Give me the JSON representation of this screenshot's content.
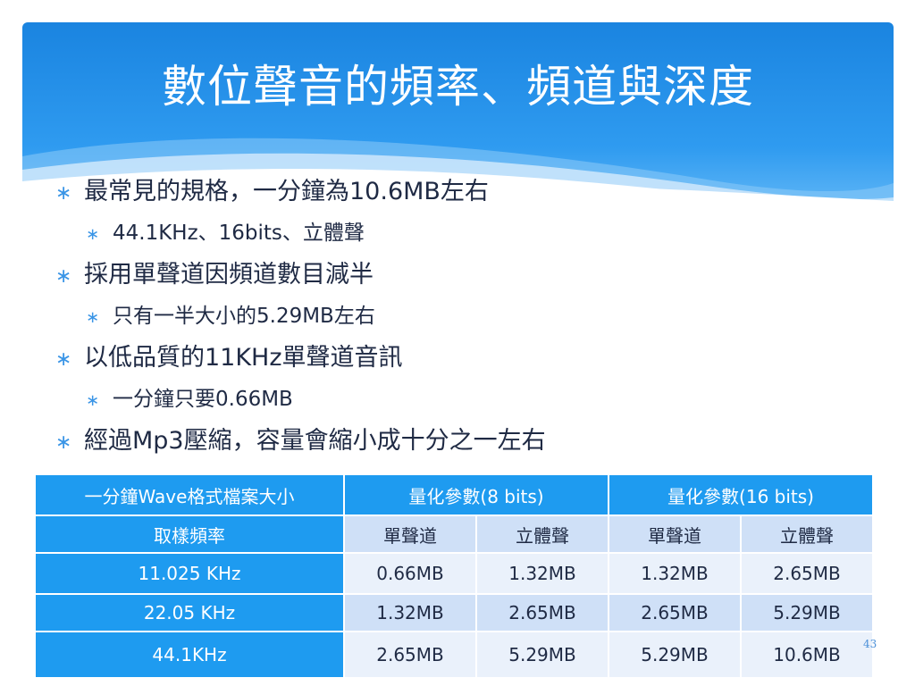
{
  "slide": {
    "title": "數位聲音的頻率、頻道與深度",
    "bullet_marker": "∗",
    "bullets": [
      {
        "level": 1,
        "text": "最常見的規格，一分鐘為10.6MB左右"
      },
      {
        "level": 2,
        "text": "44.1KHz、16bits、立體聲"
      },
      {
        "level": 1,
        "text": "採用單聲道因頻道數目減半"
      },
      {
        "level": 2,
        "text": "只有一半大小的5.29MB左右"
      },
      {
        "level": 1,
        "text": "以低品質的11KHz單聲道音訊"
      },
      {
        "level": 2,
        "text": "一分鐘只要0.66MB"
      },
      {
        "level": 1,
        "text": "經過Mp3壓縮，容量會縮小成十分之一左右"
      }
    ],
    "table": {
      "header": [
        "一分鐘Wave格式檔案大小",
        "量化參數(8 bits)",
        "量化參數(16 bits)"
      ],
      "subheader": [
        "取樣頻率",
        "單聲道",
        "立體聲",
        "單聲道",
        "立體聲"
      ],
      "rows": [
        [
          "11.025 KHz",
          "0.66MB",
          "1.32MB",
          "1.32MB",
          "2.65MB"
        ],
        [
          "22.05 KHz",
          "1.32MB",
          "2.65MB",
          "2.65MB",
          "5.29MB"
        ],
        [
          "44.1KHz",
          "2.65MB",
          "5.29MB",
          "5.29MB",
          "10.6MB"
        ]
      ]
    },
    "page_number": "43"
  },
  "colors": {
    "header_blue": "#1f8fe6",
    "accent_blue": "#1e9bf0",
    "row_light": "#eaf1fb",
    "row_medium": "#cfe0f7",
    "text_dark": "#1f2a44"
  }
}
